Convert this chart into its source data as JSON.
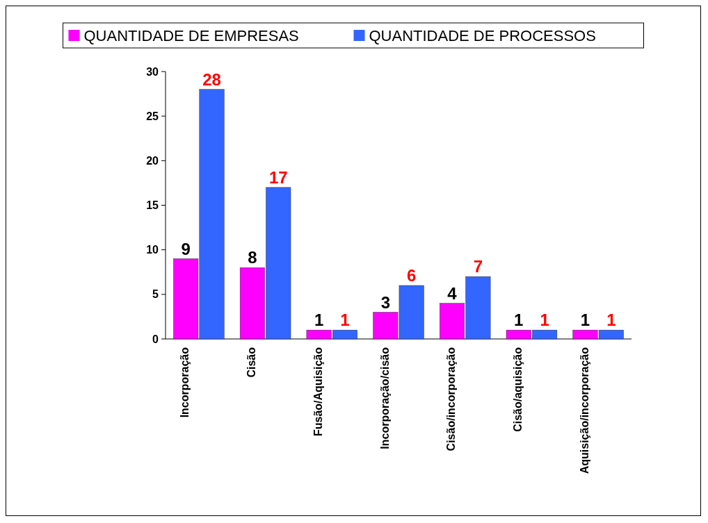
{
  "chart_data": {
    "type": "bar",
    "categories": [
      "Incorporação",
      "Cisão",
      "Fusão/Aquisição",
      "Incorporação/cisão",
      "Cisão/incorporação",
      "Cisão/aquisição",
      "Aquisição/incorporação"
    ],
    "series": [
      {
        "name": "QUANTIDADE DE EMPRESAS",
        "color": "#ff00ff",
        "values": [
          9,
          8,
          1,
          3,
          4,
          1,
          1
        ]
      },
      {
        "name": "QUANTIDADE DE PROCESSOS",
        "color": "#3366ff",
        "values": [
          28,
          17,
          1,
          6,
          7,
          1,
          1
        ]
      }
    ],
    "ylim": [
      0,
      30
    ],
    "yticks": [
      0,
      5,
      10,
      15,
      20,
      25,
      30
    ],
    "data_labels": true,
    "legend": "top",
    "grid": false
  }
}
